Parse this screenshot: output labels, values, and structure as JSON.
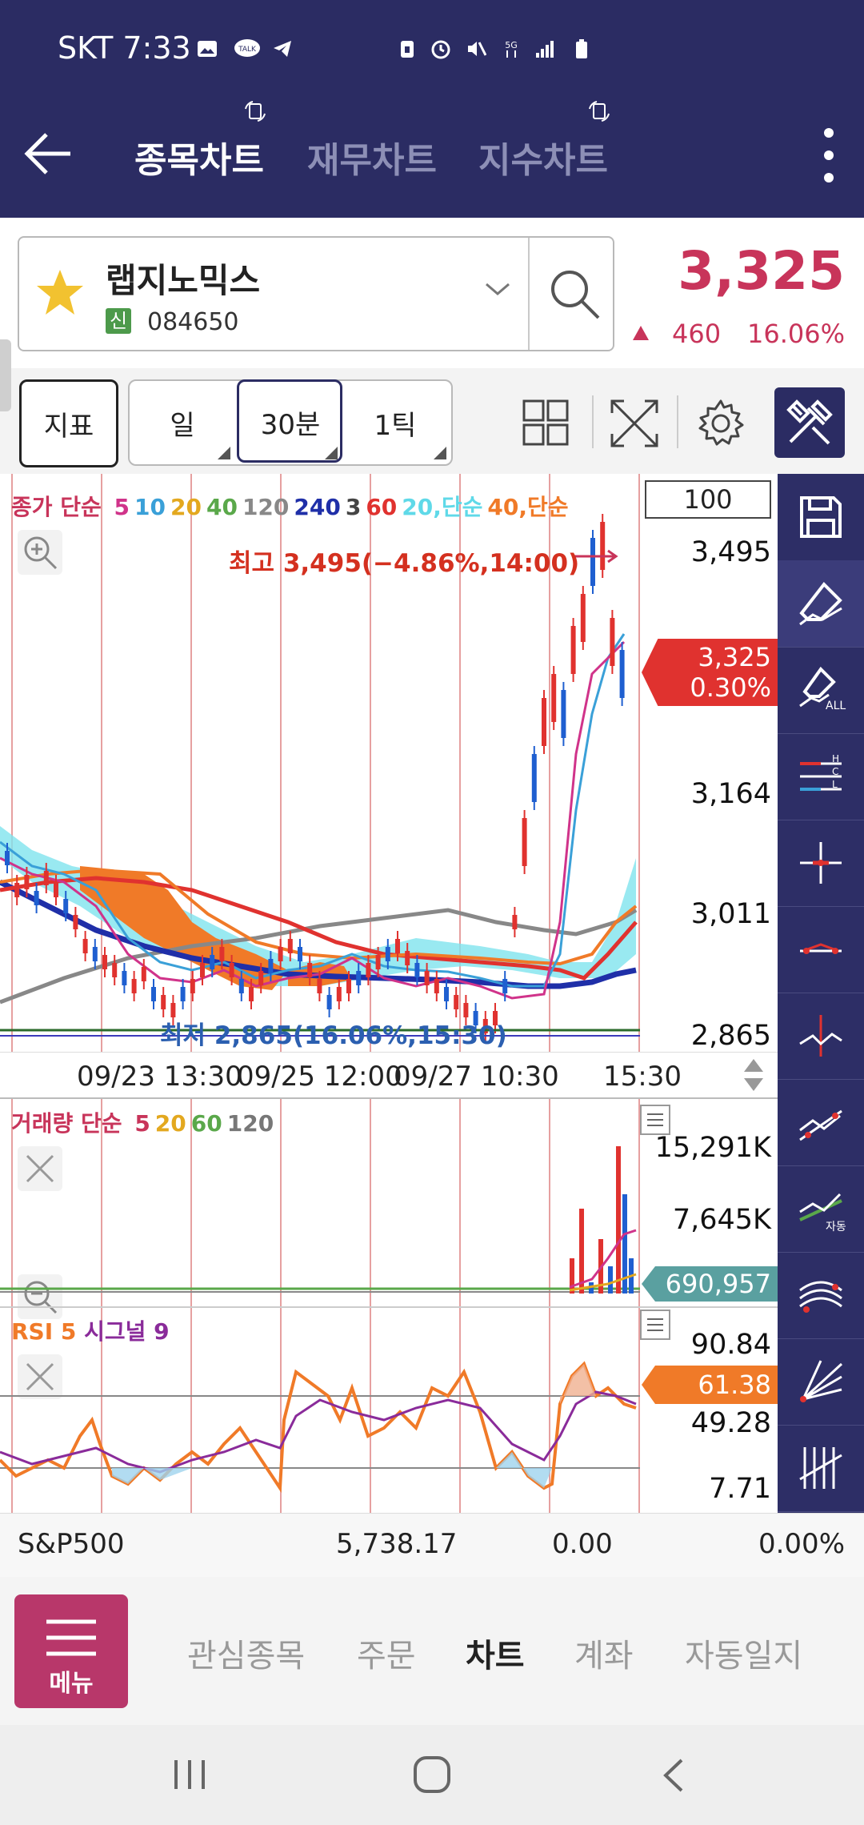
{
  "status": {
    "carrier_time": "SKT 7:33"
  },
  "appbar": {
    "tabs": [
      {
        "label": "종목차트",
        "active": true
      },
      {
        "label": "재무차트",
        "active": false
      },
      {
        "label": "지수차트",
        "active": false
      }
    ]
  },
  "stock": {
    "name": "랩지노믹스",
    "badge": "신",
    "code": "084650",
    "price": "3,325",
    "change": "460",
    "change_pct": "16.06%"
  },
  "toolbar": {
    "indicator_label": "지표",
    "periods": [
      "일",
      "30분",
      "1틱"
    ],
    "selected_period": "30분"
  },
  "main_chart": {
    "legend": {
      "prefix": "종가 단순",
      "mas": [
        {
          "label": "5",
          "color": "#d0338a"
        },
        {
          "label": "10",
          "color": "#3aa0d8"
        },
        {
          "label": "20",
          "color": "#e3a81f"
        },
        {
          "label": "40",
          "color": "#5aa84a"
        },
        {
          "label": "120",
          "color": "#888888"
        },
        {
          "label": "240",
          "color": "#1f2fa8"
        },
        {
          "label": "3",
          "color": "#444444"
        },
        {
          "label": "60",
          "color": "#e0322f"
        },
        {
          "label": "20,단순",
          "color": "#5fd9e8"
        },
        {
          "label": "40,단순",
          "color": "#f07a28"
        }
      ]
    },
    "count_box": "100",
    "high_annotation": "최고 3,495(−4.86%,14:00)",
    "low_annotation": "최저 2,865(16.06%,15:30)",
    "y_ticks": [
      "3,495",
      "3,164",
      "3,011",
      "2,865"
    ],
    "current_label": {
      "price": "3,325",
      "pct": "0.30%"
    },
    "x_ticks": [
      "09/23 13:30",
      "09/25 12:00",
      "09/27 10:30",
      "15:30"
    ]
  },
  "volume_chart": {
    "legend_prefix": "거래량 단순",
    "mas": [
      {
        "label": "5",
        "color": "#c8345a"
      },
      {
        "label": "20",
        "color": "#e3a81f"
      },
      {
        "label": "60",
        "color": "#5aa84a"
      },
      {
        "label": "120",
        "color": "#777777"
      }
    ],
    "y_ticks": [
      "15,291K",
      "7,645K"
    ],
    "current_label": "690,957"
  },
  "rsi_chart": {
    "legend": {
      "rsi": "RSI 5",
      "signal": "시그널 9"
    },
    "y_ticks": [
      "90.84",
      "49.28",
      "7.71"
    ],
    "current_label": "61.38"
  },
  "index_bar": {
    "name": "S&P500",
    "value": "5,738.17",
    "change": "0.00",
    "pct": "0.00%"
  },
  "bottom_nav": {
    "menu_label": "메뉴",
    "items": [
      {
        "label": "관심종목",
        "active": false
      },
      {
        "label": "주문",
        "active": false
      },
      {
        "label": "차트",
        "active": true
      },
      {
        "label": "계좌",
        "active": false
      },
      {
        "label": "자동일지",
        "active": false
      }
    ]
  },
  "tools": [
    {
      "icon": "save-icon",
      "sub": ""
    },
    {
      "icon": "eraser-icon",
      "sub": ""
    },
    {
      "icon": "eraser-all-icon",
      "sub": "ALL"
    },
    {
      "icon": "hcl-lines-icon",
      "sub": ""
    },
    {
      "icon": "crosshair-icon",
      "sub": ""
    },
    {
      "icon": "horizontal-line-icon",
      "sub": ""
    },
    {
      "icon": "vertical-line-icon",
      "sub": ""
    },
    {
      "icon": "trend-line-icon",
      "sub": ""
    },
    {
      "icon": "auto-trend-icon",
      "sub": "자동"
    },
    {
      "icon": "arc-lines-icon",
      "sub": ""
    },
    {
      "icon": "fan-lines-icon",
      "sub": ""
    },
    {
      "icon": "vertical-lines-icon",
      "sub": ""
    }
  ]
}
